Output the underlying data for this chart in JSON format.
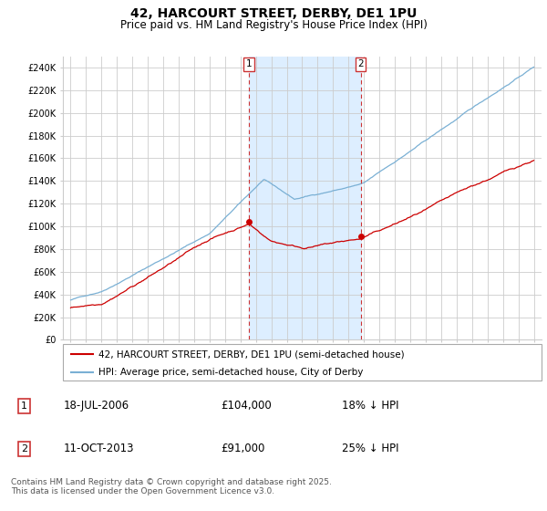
{
  "title": "42, HARCOURT STREET, DERBY, DE1 1PU",
  "subtitle": "Price paid vs. HM Land Registry's House Price Index (HPI)",
  "legend_line1": "42, HARCOURT STREET, DERBY, DE1 1PU (semi-detached house)",
  "legend_line2": "HPI: Average price, semi-detached house, City of Derby",
  "footer": "Contains HM Land Registry data © Crown copyright and database right 2025.\nThis data is licensed under the Open Government Licence v3.0.",
  "annotation1_label": "1",
  "annotation1_date": "18-JUL-2006",
  "annotation1_price": "£104,000",
  "annotation1_hpi": "18% ↓ HPI",
  "annotation1_year": 2006.54,
  "annotation1_value": 104000,
  "annotation2_label": "2",
  "annotation2_date": "11-OCT-2013",
  "annotation2_price": "£91,000",
  "annotation2_hpi": "25% ↓ HPI",
  "annotation2_year": 2013.78,
  "annotation2_value": 91000,
  "red_color": "#cc0000",
  "blue_color": "#7ab0d4",
  "shaded_color": "#ddeeff",
  "marker_box_color": "#cc3333",
  "grid_color": "#cccccc",
  "background_color": "#ffffff",
  "ylim": [
    0,
    250000
  ],
  "yticks": [
    0,
    20000,
    40000,
    60000,
    80000,
    100000,
    120000,
    140000,
    160000,
    180000,
    200000,
    220000,
    240000
  ],
  "ytick_labels": [
    "£0",
    "£20K",
    "£40K",
    "£60K",
    "£80K",
    "£100K",
    "£120K",
    "£140K",
    "£160K",
    "£180K",
    "£200K",
    "£220K",
    "£240K"
  ],
  "xticks": [
    1995,
    1996,
    1997,
    1998,
    1999,
    2000,
    2001,
    2002,
    2003,
    2004,
    2005,
    2006,
    2007,
    2008,
    2009,
    2010,
    2011,
    2012,
    2013,
    2014,
    2015,
    2016,
    2017,
    2018,
    2019,
    2020,
    2021,
    2022,
    2023,
    2024,
    2025
  ],
  "xlim": [
    1994.5,
    2025.5
  ]
}
